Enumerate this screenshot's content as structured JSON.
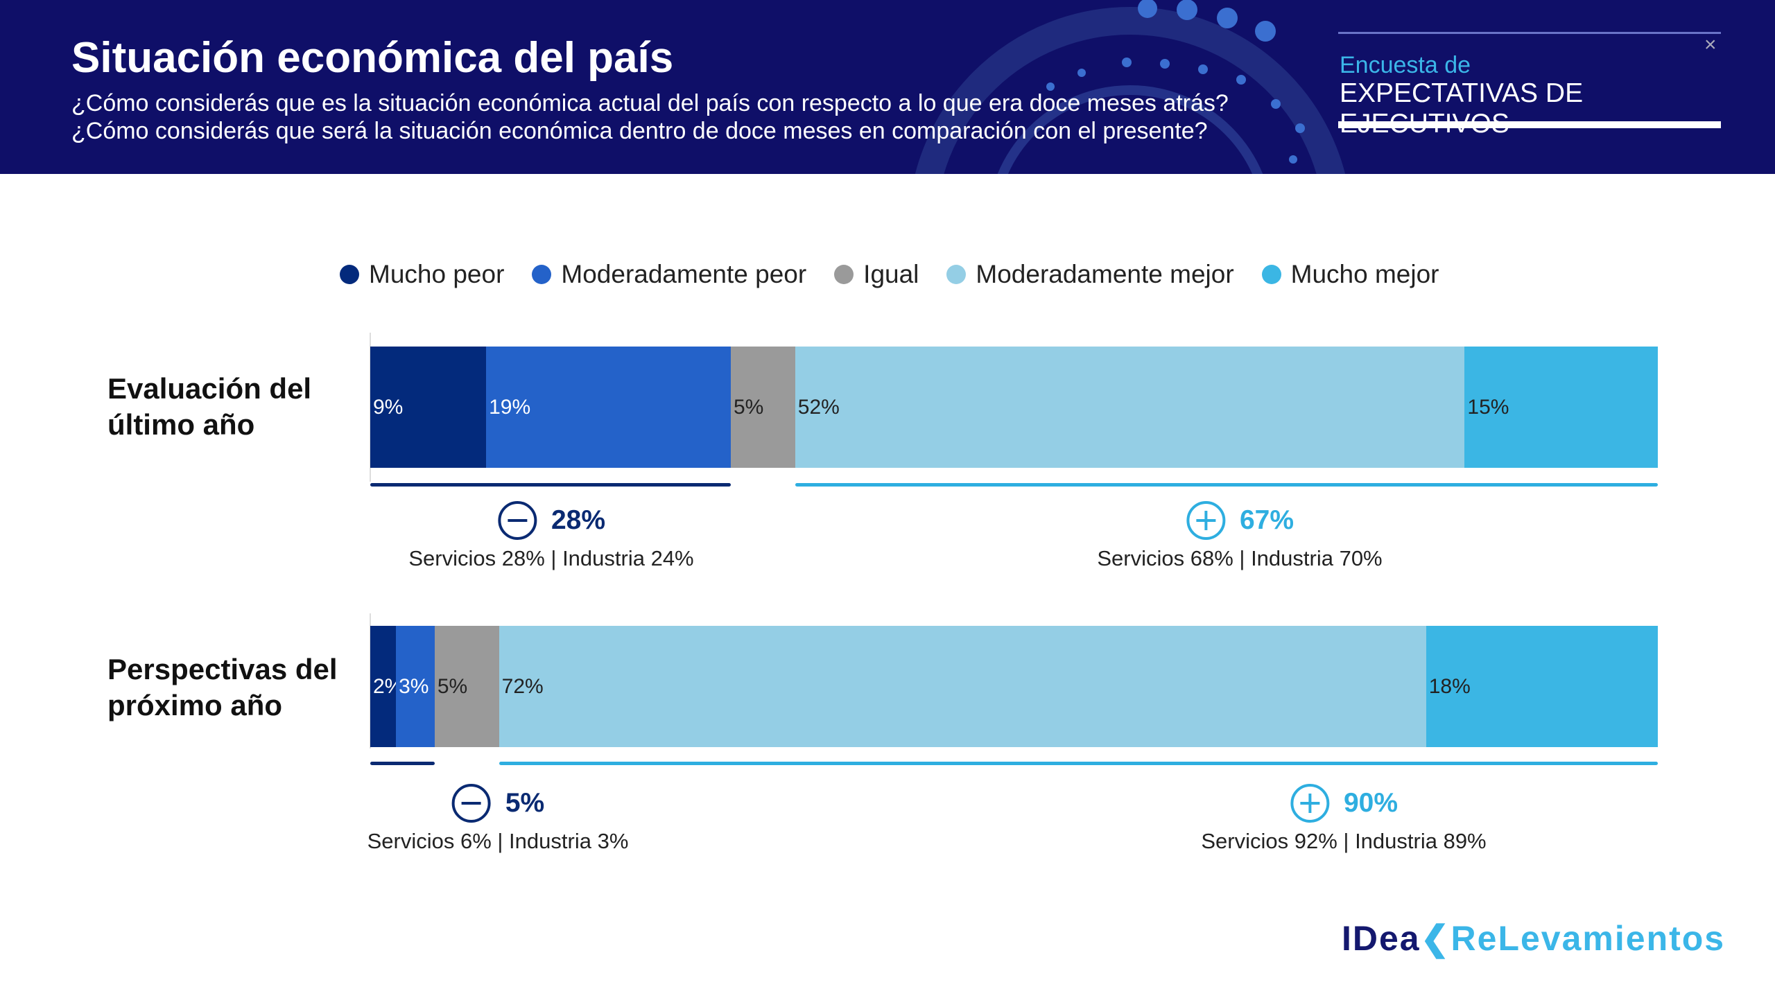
{
  "header": {
    "title": "Situación económica del país",
    "subtitle_1": "¿Cómo considerás que es la situación económica actual del país con respecto a lo que era doce meses atrás?",
    "subtitle_2": "¿Cómo considerás que será la situación económica dentro de doce meses en comparación con el presente?",
    "brand_line1": "Encuesta de",
    "brand_line2": "EXPECTATIVAS DE EJECUTIVOS",
    "close": "×"
  },
  "logo": {
    "part1": "IDea",
    "part2": "ReLevamientos"
  },
  "chart_data": {
    "type": "bar",
    "orientation": "horizontal",
    "stacked": true,
    "unit": "%",
    "categories": [
      "Evaluación del último año",
      "Perspectivas del próximo año"
    ],
    "legend_position": "top",
    "series": [
      {
        "name": "Mucho peor",
        "color": "#032a7c",
        "values": [
          9,
          2
        ],
        "labels": [
          "9%",
          "2%"
        ]
      },
      {
        "name": "Moderadamente peor",
        "color": "#2462c9",
        "values": [
          19,
          3
        ],
        "labels": [
          "19%",
          "3%"
        ]
      },
      {
        "name": "Igual",
        "color": "#9a9a9a",
        "values": [
          5,
          5
        ],
        "labels": [
          "5%",
          "5%"
        ]
      },
      {
        "name": "Moderadamente mejor",
        "color": "#94cee5",
        "values": [
          52,
          72
        ],
        "labels": [
          "52%",
          "72%"
        ]
      },
      {
        "name": "Mucho mejor",
        "color": "#3bb6e4",
        "values": [
          15,
          18
        ],
        "labels": [
          "15%",
          "18%"
        ]
      }
    ],
    "summaries": [
      {
        "negative": {
          "icon": "minus-circle-icon",
          "color": "#0a2a72",
          "value": "28%",
          "detail": "Servicios 28% | Industria 24%"
        },
        "positive": {
          "icon": "plus-circle-icon",
          "color": "#2eaee0",
          "value": "67%",
          "detail": "Servicios 68% | Industria 70%"
        }
      },
      {
        "negative": {
          "icon": "minus-circle-icon",
          "color": "#0a2a72",
          "value": "5%",
          "detail": "Servicios 6% | Industria 3%"
        },
        "positive": {
          "icon": "plus-circle-icon",
          "color": "#2eaee0",
          "value": "90%",
          "detail": "Servicios 92% | Industria 89%"
        }
      }
    ]
  }
}
